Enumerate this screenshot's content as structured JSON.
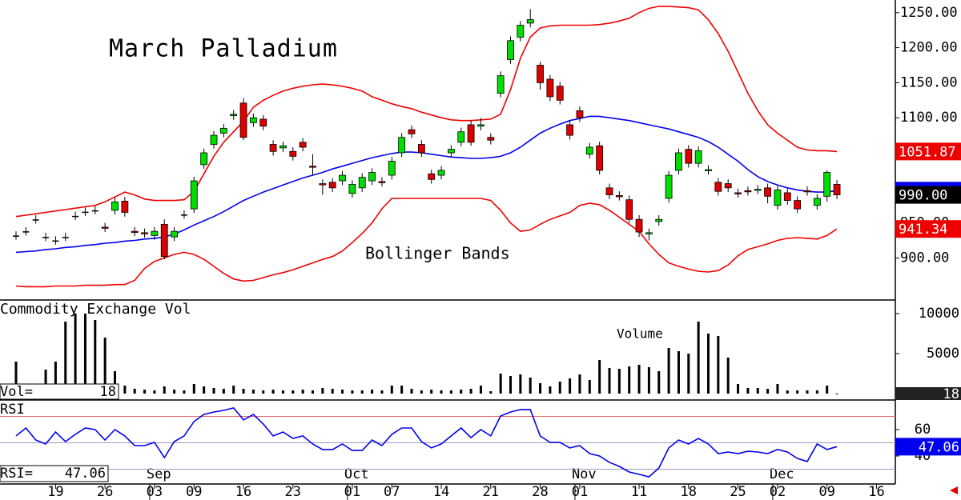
{
  "chart_data": [
    {
      "type": "candlestick",
      "title": "March Palladium",
      "annotation": "Bollinger Bands",
      "categories": [
        null,
        null,
        null,
        null,
        "19",
        null,
        null,
        null,
        null,
        "26",
        null,
        null,
        null,
        null,
        "03",
        null,
        null,
        null,
        "09",
        null,
        null,
        null,
        null,
        "16",
        null,
        null,
        null,
        null,
        "23",
        null,
        null,
        null,
        null,
        null,
        "01",
        null,
        null,
        null,
        "07",
        null,
        null,
        null,
        null,
        "14",
        null,
        null,
        null,
        null,
        "21",
        null,
        null,
        null,
        null,
        "28",
        null,
        null,
        null,
        "01",
        null,
        null,
        null,
        null,
        null,
        "11",
        null,
        null,
        null,
        null,
        "18",
        null,
        null,
        null,
        null,
        "25",
        null,
        null,
        null,
        "02",
        null,
        null,
        null,
        null,
        "09",
        null,
        null,
        null,
        null,
        "16"
      ],
      "months": [
        null,
        null,
        null,
        null,
        null,
        null,
        null,
        null,
        null,
        null,
        null,
        null,
        null,
        null,
        "Sep",
        null,
        null,
        null,
        null,
        null,
        null,
        null,
        null,
        null,
        null,
        null,
        null,
        null,
        null,
        null,
        null,
        null,
        null,
        null,
        "Oct",
        null,
        null,
        null,
        null,
        null,
        null,
        null,
        null,
        null,
        null,
        null,
        null,
        null,
        null,
        null,
        null,
        null,
        null,
        null,
        null,
        null,
        null,
        "Nov",
        null,
        null,
        null,
        null,
        null,
        null,
        null,
        null,
        null,
        null,
        null,
        null,
        null,
        null,
        null,
        null,
        null,
        null,
        null,
        "Dec",
        null,
        null,
        null,
        null,
        null,
        null,
        null,
        null,
        null,
        null
      ],
      "open": [
        932,
        938,
        955,
        930,
        925,
        930,
        960,
        966,
        968,
        944,
        968,
        981,
        938,
        936,
        932,
        948,
        930,
        962,
        970,
        1033,
        1062,
        1078,
        1103,
        1121,
        1093,
        1098,
        1062,
        1057,
        1052,
        1065,
        1031,
        1006,
        1008,
        1010,
        992,
        1000,
        1010,
        1009,
        1018,
        1050,
        1083,
        1062,
        1020,
        1018,
        1050,
        1065,
        1090,
        1088,
        1072,
        1135,
        1183,
        1215,
        1235,
        1175,
        1155,
        1145,
        1090,
        1110,
        1048,
        1060,
        1000,
        989,
        983,
        955,
        935,
        952,
        985,
        1025,
        1055,
        1035,
        1025,
        1008,
        1006,
        993,
        996,
        997,
        1000,
        975,
        993,
        982,
        996,
        975,
        988,
        1005,
        null,
        null,
        null,
        null
      ],
      "high": [
        938,
        944,
        961,
        936,
        931,
        936,
        966,
        972,
        974,
        950,
        986,
        987,
        944,
        942,
        944,
        955,
        944,
        968,
        1016,
        1056,
        1081,
        1091,
        1111,
        1128,
        1106,
        1104,
        1068,
        1066,
        1058,
        1071,
        1048,
        1012,
        1014,
        1024,
        1011,
        1021,
        1028,
        1015,
        1044,
        1078,
        1089,
        1068,
        1026,
        1031,
        1061,
        1086,
        1096,
        1100,
        1078,
        1166,
        1216,
        1238,
        1255,
        1180,
        1161,
        1151,
        1096,
        1116,
        1064,
        1066,
        1006,
        995,
        989,
        961,
        942,
        961,
        1024,
        1056,
        1061,
        1059,
        1032,
        1014,
        1012,
        999,
        1002,
        1004,
        1006,
        1003,
        999,
        988,
        1002,
        991,
        1025,
        1011,
        null,
        null,
        null,
        null
      ],
      "low": [
        926,
        932,
        949,
        924,
        919,
        924,
        954,
        960,
        962,
        937,
        962,
        959,
        931,
        929,
        926,
        898,
        924,
        956,
        964,
        1027,
        1056,
        1072,
        1097,
        1068,
        1087,
        1082,
        1046,
        1051,
        1039,
        1052,
        1018,
        990,
        994,
        1004,
        986,
        994,
        1004,
        1002,
        1012,
        1044,
        1071,
        1044,
        1006,
        1012,
        1044,
        1059,
        1060,
        1082,
        1062,
        1129,
        1177,
        1209,
        1229,
        1140,
        1124,
        1119,
        1069,
        1094,
        1042,
        1019,
        984,
        982,
        950,
        930,
        925,
        946,
        979,
        1019,
        1029,
        1029,
        1019,
        989,
        994,
        986,
        989,
        991,
        978,
        969,
        976,
        964,
        989,
        969,
        980,
        984,
        null,
        null,
        null,
        null
      ],
      "close": [
        932,
        938,
        955,
        930,
        925,
        930,
        960,
        966,
        968,
        943,
        980,
        965,
        937,
        935,
        938,
        902,
        938,
        962,
        1010,
        1050,
        1075,
        1085,
        1105,
        1072,
        1100,
        1088,
        1052,
        1060,
        1045,
        1058,
        1030,
        1005,
        1000,
        1018,
        1005,
        1015,
        1022,
        1008,
        1038,
        1072,
        1077,
        1050,
        1012,
        1025,
        1055,
        1080,
        1065,
        1090,
        1068,
        1160,
        1210,
        1232,
        1240,
        1150,
        1130,
        1125,
        1075,
        1100,
        1058,
        1025,
        990,
        988,
        955,
        937,
        936,
        955,
        1018,
        1050,
        1035,
        1053,
        1026,
        995,
        1000,
        992,
        995,
        998,
        988,
        997,
        982,
        970,
        995,
        985,
        1022,
        990,
        null,
        null,
        null,
        null
      ],
      "close_labels": [
        null,
        null,
        null,
        null,
        null,
        null,
        null,
        null,
        null,
        null,
        null,
        null,
        null,
        null,
        null,
        null,
        null,
        null,
        null,
        null,
        null,
        null,
        null,
        null,
        null,
        null,
        null,
        null,
        null,
        null,
        null,
        null,
        null,
        null,
        null,
        null,
        null,
        null,
        null,
        null,
        null,
        null,
        null,
        null,
        null,
        null,
        null,
        null,
        null,
        null,
        null,
        null,
        null,
        null,
        null,
        null,
        null,
        null,
        null,
        null,
        null,
        null,
        null,
        null,
        null,
        null,
        null,
        null,
        null,
        null,
        null,
        null,
        null,
        null,
        null,
        null,
        null,
        null,
        null,
        null,
        null,
        null,
        null,
        "990.00",
        null,
        null,
        null,
        null
      ],
      "up_color": "#00dd00",
      "down_color": "#dd0000",
      "flat_color": "#000000",
      "series": [
        {
          "color": "#ee0000",
          "values": [
            959,
            961,
            963,
            965,
            967,
            969,
            971,
            973,
            975,
            980,
            987,
            994,
            990,
            984,
            982,
            982,
            982,
            983,
            995,
            1020,
            1045,
            1065,
            1080,
            1095,
            1115,
            1125,
            1132,
            1138,
            1142,
            1145,
            1147,
            1148,
            1147,
            1145,
            1142,
            1138,
            1130,
            1125,
            1120,
            1116,
            1113,
            1108,
            1104,
            1100,
            1097,
            1096,
            1096,
            1097,
            1098,
            1105,
            1140,
            1185,
            1215,
            1228,
            1231,
            1232,
            1232,
            1232,
            1232,
            1233,
            1235,
            1238,
            1242,
            1250,
            1256,
            1259,
            1259,
            1258,
            1257,
            1254,
            1240,
            1220,
            1195,
            1165,
            1135,
            1110,
            1090,
            1078,
            1068,
            1058,
            1054,
            1053,
            1053,
            1051.87,
            null,
            null,
            null,
            null
          ]
        },
        {
          "color": "#0000ee",
          "values": [
            908,
            909,
            910,
            912,
            913,
            915,
            916,
            918,
            919,
            921,
            922,
            924,
            925,
            927,
            928,
            930,
            934,
            940,
            947,
            953,
            959,
            966,
            974,
            982,
            988,
            994,
            999,
            1004,
            1009,
            1014,
            1018,
            1022,
            1027,
            1031,
            1035,
            1039,
            1043,
            1046,
            1049,
            1051,
            1051,
            1050,
            1048,
            1046,
            1044,
            1043,
            1042,
            1042,
            1043,
            1045,
            1050,
            1058,
            1068,
            1078,
            1085,
            1091,
            1096,
            1099,
            1102,
            1102,
            1100,
            1098,
            1096,
            1093,
            1090,
            1087,
            1084,
            1080,
            1076,
            1072,
            1066,
            1058,
            1048,
            1038,
            1026,
            1016,
            1009,
            1004,
            1000,
            997,
            995,
            994,
            994,
            996,
            null,
            null,
            null,
            null
          ]
        },
        {
          "color": "#ee0000",
          "values": [
            860,
            859,
            859,
            859,
            860,
            860,
            860,
            861,
            861,
            861,
            862,
            862,
            868,
            885,
            895,
            900,
            905,
            908,
            905,
            898,
            888,
            878,
            870,
            867,
            868,
            872,
            876,
            879,
            883,
            888,
            893,
            898,
            902,
            910,
            922,
            935,
            950,
            970,
            985,
            985,
            985,
            985,
            985,
            985,
            985,
            985,
            985,
            985,
            982,
            968,
            950,
            938,
            940,
            948,
            955,
            960,
            965,
            975,
            978,
            976,
            968,
            958,
            948,
            938,
            920,
            905,
            893,
            888,
            884,
            881,
            880,
            882,
            890,
            903,
            912,
            916,
            920,
            925,
            928,
            929,
            928,
            927,
            932,
            941.34,
            null,
            null,
            null,
            null
          ]
        }
      ],
      "ylim": [
        840,
        1268
      ],
      "yticks": [
        {
          "value": 900,
          "label": "900.00"
        },
        {
          "value": 950,
          "label": "950.00"
        },
        {
          "value": 1000,
          "label": "1000.00"
        },
        {
          "value": 1050,
          "label": "1050.00"
        },
        {
          "value": 1100,
          "label": "1100.00"
        },
        {
          "value": 1150,
          "label": "1150.00"
        },
        {
          "value": 1200,
          "label": "1200.00"
        },
        {
          "value": 1250,
          "label": "1250.00"
        }
      ]
    },
    {
      "type": "bar",
      "title": "Commodity Exchange Vol",
      "annotation": "Volume",
      "readout_label": "Vol=",
      "color": "#000000",
      "values": [
        4000,
        800,
        0,
        3000,
        4000,
        9000,
        10000,
        10000,
        9200,
        7000,
        2800,
        1000,
        600,
        500,
        400,
        900,
        500,
        400,
        1200,
        900,
        700,
        600,
        1000,
        600,
        500,
        400,
        500,
        400,
        400,
        500,
        400,
        700,
        600,
        500,
        400,
        400,
        500,
        400,
        1000,
        1000,
        600,
        400,
        500,
        400,
        400,
        500,
        600,
        1000,
        300,
        2500,
        2200,
        2400,
        2000,
        1300,
        900,
        1500,
        1900,
        2400,
        1700,
        4200,
        3200,
        3100,
        3400,
        3600,
        3300,
        2800,
        5700,
        5300,
        5000,
        9000,
        7500,
        7200,
        4500,
        1200,
        700,
        700,
        600,
        1200,
        400,
        400,
        400,
        400,
        1000,
        18,
        null,
        null,
        null,
        null
      ],
      "ylim": [
        -800,
        11700
      ],
      "yticks": [
        5000,
        10000
      ]
    },
    {
      "type": "line",
      "title": "RSI",
      "readout_label": "RSI=",
      "color": "#0000ee",
      "values": [
        55.2,
        61.2,
        52.1,
        49.1,
        58.2,
        50.9,
        56.4,
        61.2,
        60,
        52.1,
        60,
        55.2,
        47.9,
        47.9,
        50.3,
        38.8,
        50.9,
        55.2,
        66.1,
        71.5,
        73.3,
        74.5,
        76.4,
        67.3,
        71.5,
        64.2,
        55.2,
        58.2,
        53.3,
        55.2,
        49.1,
        44.9,
        44.9,
        49.1,
        44.2,
        44.2,
        52.1,
        47.9,
        56.4,
        61.2,
        61.2,
        50.9,
        46.1,
        49.1,
        55.2,
        61.2,
        53.9,
        60,
        55.2,
        70.3,
        73.3,
        75.2,
        75.2,
        55.2,
        50.3,
        50.3,
        46.1,
        47.9,
        41.8,
        40,
        35.2,
        32.1,
        27.9,
        26.1,
        24.2,
        30.9,
        46.1,
        52.1,
        49.1,
        53.3,
        49.1,
        41.8,
        43,
        41.8,
        43.6,
        43,
        41.8,
        44.9,
        43,
        38.2,
        35.8,
        49.1,
        44.9,
        47.06,
        null,
        null,
        null,
        null
      ],
      "ylim": [
        18.8,
        82.4
      ],
      "yticks": [
        40,
        60
      ],
      "reference_lines": [
        30,
        50,
        70
      ]
    }
  ]
}
